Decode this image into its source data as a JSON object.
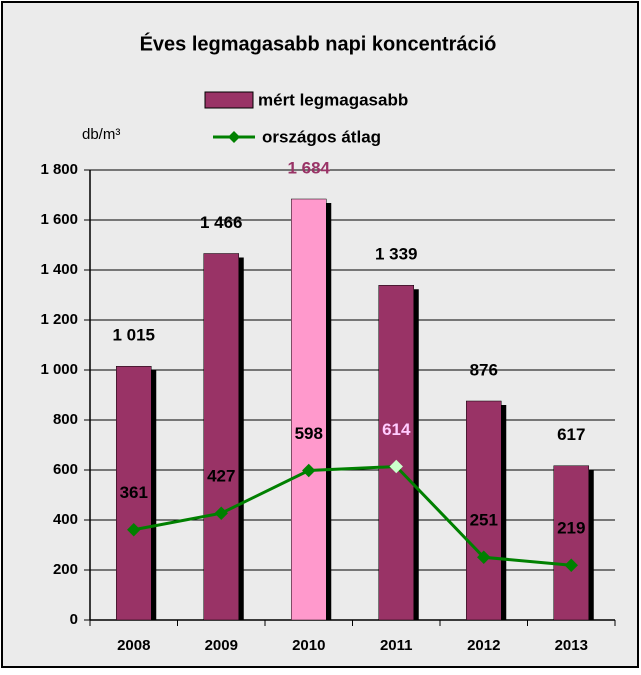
{
  "chart_data": {
    "type": "bar_line",
    "title": "Éves legmagasabb napi koncentráció",
    "y_label": "db/m³",
    "categories": [
      "2008",
      "2009",
      "2010",
      "2011",
      "2012",
      "2013"
    ],
    "series": [
      {
        "name": "mért legmagasabb",
        "type": "bar",
        "color": "#993366",
        "colors": [
          "#993366",
          "#993366",
          "#ff99cc",
          "#993366",
          "#993366",
          "#993366"
        ],
        "label_colors": [
          "#000000",
          "#000000",
          "#993366",
          "#000000",
          "#000000",
          "#000000"
        ],
        "values": [
          1015,
          1466,
          1684,
          1339,
          876,
          617
        ],
        "value_labels": [
          "1 015",
          "1 466",
          "1 684",
          "1 339",
          "876",
          "617"
        ]
      },
      {
        "name": "országos átlag",
        "type": "line",
        "color": "#008000",
        "colors": [
          "#008000",
          "#008000",
          "#008000",
          "#ccffcc",
          "#008000",
          "#008000"
        ],
        "label_colors": [
          "#000000",
          "#000000",
          "#000000",
          "#ffccff",
          "#000000",
          "#000000"
        ],
        "values": [
          361,
          427,
          598,
          614,
          251,
          219
        ]
      }
    ],
    "ylim": [
      0,
      1800
    ],
    "yticks": [
      0,
      200,
      400,
      600,
      800,
      {
        "value": 1000,
        "label": "1 000"
      },
      {
        "value": 1200,
        "label": "1 200"
      },
      {
        "value": 1400,
        "label": "1 400"
      },
      {
        "value": 1600,
        "label": "1 600"
      },
      {
        "value": 1800,
        "label": "1 800"
      }
    ],
    "grid": true
  }
}
